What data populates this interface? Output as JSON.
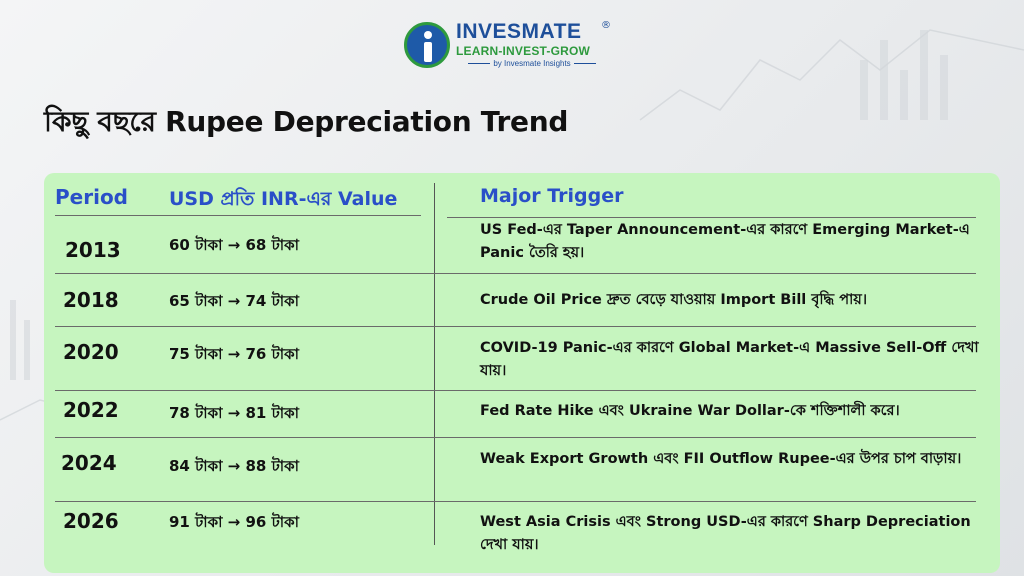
{
  "brand": {
    "name": "INVESMATE",
    "registered": "®",
    "tagline": "LEARN-INVEST-GROW",
    "byline": "by Invesmate Insights"
  },
  "title": "কিছু বছরে Rupee Depreciation Trend",
  "table": {
    "headers": {
      "period": "Period",
      "value": "USD প্রতি INR-এর Value",
      "trigger": "Major Trigger"
    },
    "rows": [
      {
        "year": "2013",
        "value": "60 টাকা → 68 টাকা",
        "trigger": "US Fed-এর Taper Announcement-এর কারণে Emerging Market-এ Panic তৈরি হয়।"
      },
      {
        "year": "2018",
        "value": "65 টাকা → 74 টাকা",
        "trigger": "Crude Oil Price দ্রুত বেড়ে যাওয়ায় Import Bill বৃদ্ধি পায়।"
      },
      {
        "year": "2020",
        "value": "75 টাকা → 76 টাকা",
        "trigger": "COVID-19 Panic-এর কারণে Global Market-এ Massive Sell-Off দেখা যায়।"
      },
      {
        "year": "2022",
        "value": "78 টাকা → 81 টাকা",
        "trigger": "Fed Rate Hike এবং Ukraine War Dollar-কে শক্তিশালী করে।"
      },
      {
        "year": "2024",
        "value": "84 টাকা → 88 টাকা",
        "trigger": "Weak Export Growth এবং FII Outflow Rupee-এর উপর চাপ বাড়ায়।"
      },
      {
        "year": "2026",
        "value": "91 টাকা → 96 টাকা",
        "trigger": "West Asia Crisis এবং Strong USD-এর কারণে Sharp Depreciation দেখা যায়।"
      }
    ]
  },
  "colors": {
    "card_bg": "#c6f5bf",
    "header_text": "#2a4fc8",
    "brand_blue": "#1e4f9a",
    "brand_green": "#2e9a3e"
  }
}
